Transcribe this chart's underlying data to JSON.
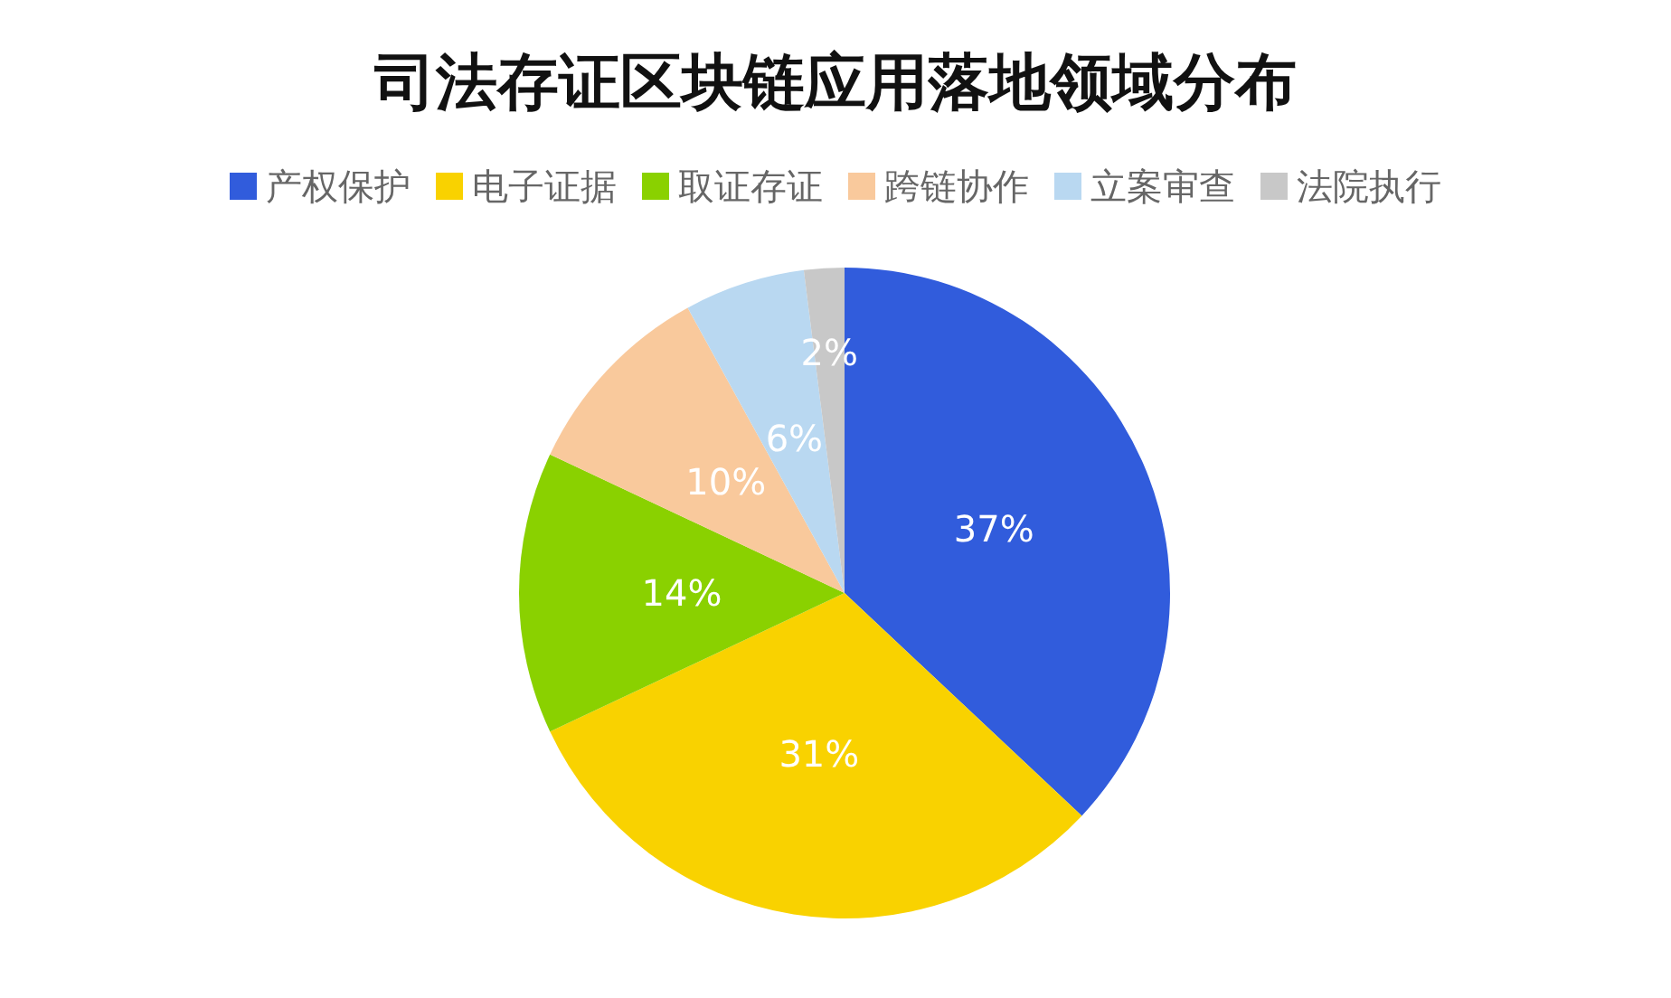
{
  "chart_data": {
    "type": "pie",
    "title": "司法存证区块链应用落地领域分布",
    "categories": [
      "产权保护",
      "电子证据",
      "取证存证",
      "跨链协作",
      "立案审查",
      "法院执行"
    ],
    "values": [
      37,
      31,
      14,
      10,
      6,
      2
    ],
    "colors": [
      "#315cdc",
      "#f9d200",
      "#8ad100",
      "#f9c99c",
      "#b9d8f1",
      "#c8c8c8"
    ],
    "value_labels": [
      "37%",
      "31%",
      "14%",
      "10%",
      "6%",
      "2%"
    ],
    "legend": "top"
  }
}
